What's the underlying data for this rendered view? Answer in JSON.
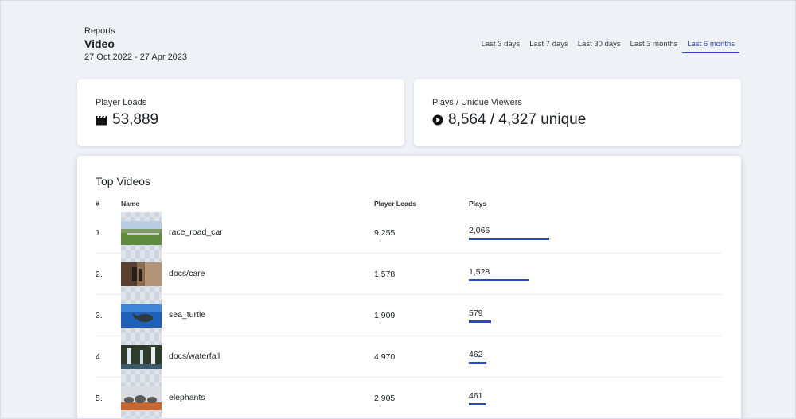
{
  "header": {
    "breadcrumb": "Reports",
    "title": "Video",
    "date_range": "27 Oct 2022 - 27 Apr 2023"
  },
  "tabs": [
    {
      "label": "Last 3 days",
      "active": false
    },
    {
      "label": "Last 7 days",
      "active": false
    },
    {
      "label": "Last 30 days",
      "active": false
    },
    {
      "label": "Last 3 months",
      "active": false
    },
    {
      "label": "Last 6 months",
      "active": true
    }
  ],
  "stats": {
    "player_loads": {
      "label": "Player Loads",
      "value": "53,889",
      "icon": "clapperboard-icon"
    },
    "plays": {
      "label": "Plays / Unique Viewers",
      "value": "8,564 / 4,327 unique",
      "icon": "play-circle-icon"
    }
  },
  "top_videos": {
    "title": "Top Videos",
    "columns": {
      "rank": "#",
      "name": "Name",
      "player_loads": "Player Loads",
      "plays": "Plays"
    },
    "rows": [
      {
        "rank": "1.",
        "name": "race_road_car",
        "player_loads": "9,255",
        "plays": "2,066",
        "plays_share": 1.0
      },
      {
        "rank": "2.",
        "name": "docs/care",
        "player_loads": "1,578",
        "plays": "1,528",
        "plays_share": 0.74
      },
      {
        "rank": "3.",
        "name": "sea_turtle",
        "player_loads": "1,909",
        "plays": "579",
        "plays_share": 0.28
      },
      {
        "rank": "4.",
        "name": "docs/waterfall",
        "player_loads": "4,970",
        "plays": "462",
        "plays_share": 0.22
      },
      {
        "rank": "5.",
        "name": "elephants",
        "player_loads": "2,905",
        "plays": "461",
        "plays_share": 0.22
      }
    ]
  },
  "colors": {
    "accent": "#3048c4",
    "background": "#eef1f6",
    "card": "#ffffff"
  }
}
